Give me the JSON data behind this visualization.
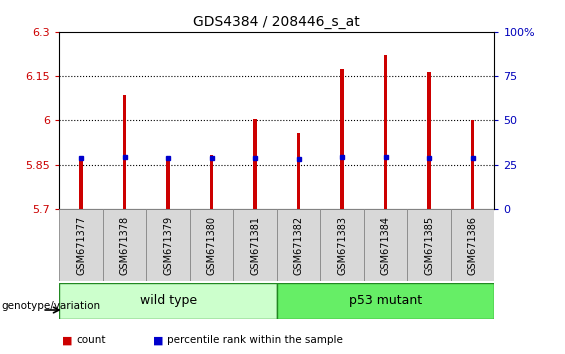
{
  "title": "GDS4384 / 208446_s_at",
  "samples": [
    "GSM671377",
    "GSM671378",
    "GSM671379",
    "GSM671380",
    "GSM671381",
    "GSM671382",
    "GSM671383",
    "GSM671384",
    "GSM671385",
    "GSM671386"
  ],
  "bar_values": [
    5.862,
    6.085,
    5.876,
    5.883,
    6.005,
    5.958,
    6.175,
    6.22,
    6.165,
    6.0
  ],
  "blue_values": [
    5.874,
    5.876,
    5.872,
    5.872,
    5.872,
    5.87,
    5.877,
    5.877,
    5.873,
    5.874
  ],
  "bar_bottom": 5.7,
  "ylim_left": [
    5.7,
    6.3
  ],
  "ylim_right": [
    0,
    100
  ],
  "yticks_left": [
    5.7,
    5.85,
    6.0,
    6.15,
    6.3
  ],
  "yticks_right": [
    0,
    25,
    50,
    75,
    100
  ],
  "ytick_labels_left": [
    "5.7",
    "5.85",
    "6",
    "6.15",
    "6.3"
  ],
  "ytick_labels_right": [
    "0",
    "25",
    "50",
    "75",
    "100%"
  ],
  "grid_values": [
    5.85,
    6.0,
    6.15
  ],
  "bar_color": "#cc0000",
  "blue_color": "#0000cc",
  "bar_width": 0.08,
  "groups": [
    {
      "label": "wild type",
      "start": 0,
      "end": 5,
      "color": "#ccffcc"
    },
    {
      "label": "p53 mutant",
      "start": 5,
      "end": 10,
      "color": "#66ee66"
    }
  ],
  "group_row_label": "genotype/variation",
  "legend_items": [
    {
      "color": "#cc0000",
      "label": "count"
    },
    {
      "color": "#0000cc",
      "label": "percentile rank within the sample"
    }
  ],
  "left_tick_color": "#cc0000",
  "right_tick_color": "#0000bb",
  "tick_label_fontsize": 8,
  "group_label_fontsize": 9,
  "title_fontsize": 10,
  "sample_label_fontsize": 7
}
